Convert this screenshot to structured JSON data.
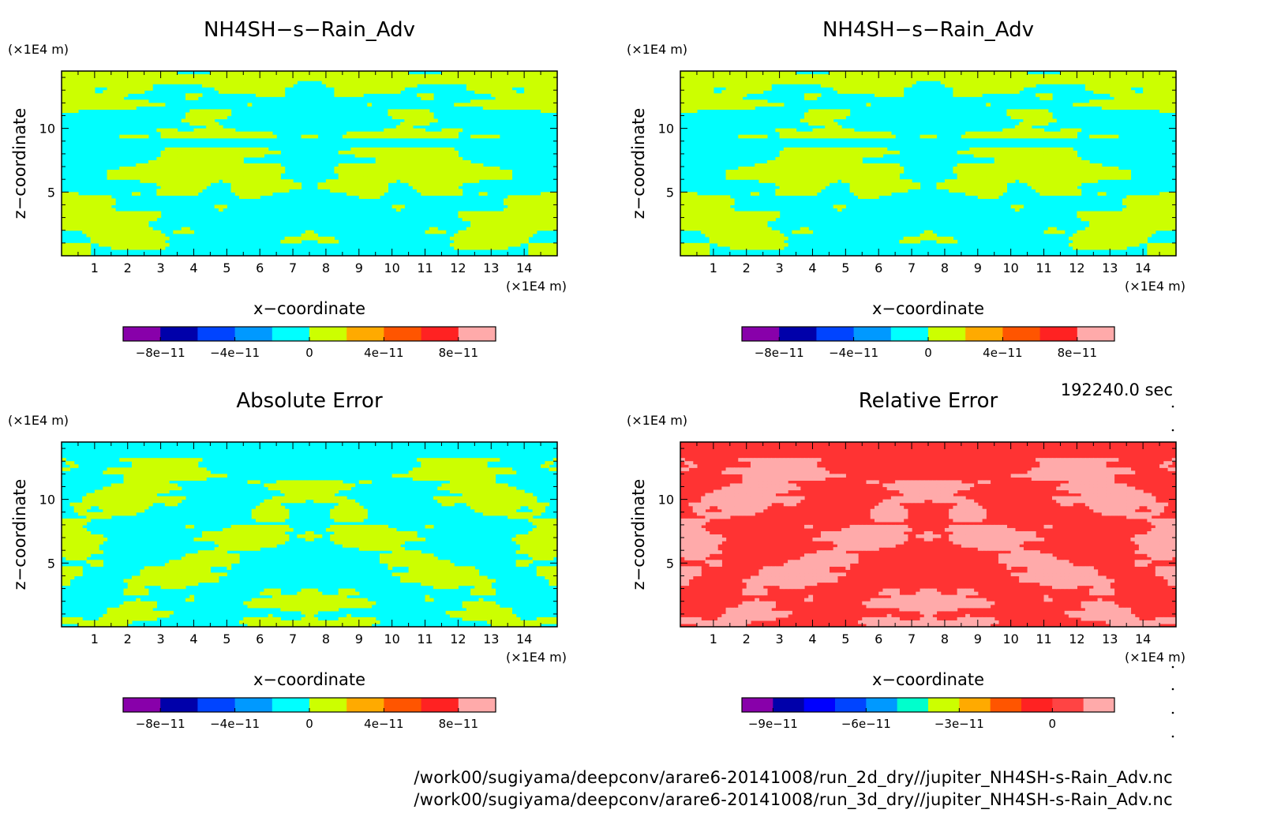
{
  "timestamp": "192240.0 sec",
  "footer_files": [
    "/work00/sugiyama/deepconv/arare6-20141008/run_2d_dry//jupiter_NH4SH-s-Rain_Adv.nc",
    "/work00/sugiyama/deepconv/arare6-20141008/run_3d_dry//jupiter_NH4SH-s-Rain_Adv.nc"
  ],
  "colors": {
    "cyan": "#00ffff",
    "yellow_green": "#ccff00",
    "red": "#ff3333",
    "pink": "#ffaaaa",
    "frame": "#000000"
  },
  "chart_data": [
    {
      "type": "heatmap",
      "title": "NH4SH−s−Rain_Adv",
      "xlabel": "x−coordinate",
      "ylabel": "z−coordinate",
      "x_unit": "(×1E4 m)",
      "y_unit": "(×1E4 m)",
      "xlim": [
        0,
        15
      ],
      "ylim": [
        0,
        14.5
      ],
      "xticks": [
        1,
        2,
        3,
        4,
        5,
        6,
        7,
        8,
        9,
        10,
        11,
        12,
        13,
        14
      ],
      "yticks": [
        5,
        10
      ],
      "field_pattern": "A",
      "field_colors": [
        "cyan",
        "yellow_green"
      ],
      "colorbar": {
        "colors": [
          "#8800aa",
          "#0000aa",
          "#0044ff",
          "#0099ff",
          "#00ffff",
          "#ccff00",
          "#ffaa00",
          "#ff5500",
          "#ff2222",
          "#ffaaaa"
        ],
        "tick_labels": [
          "−8e−11",
          "−4e−11",
          "0",
          "4e−11",
          "8e−11"
        ],
        "tick_boundaries": [
          1,
          3,
          5,
          7,
          9
        ]
      }
    },
    {
      "type": "heatmap",
      "title": "NH4SH−s−Rain_Adv",
      "xlabel": "x−coordinate",
      "ylabel": "z−coordinate",
      "x_unit": "(×1E4 m)",
      "y_unit": "(×1E4 m)",
      "xlim": [
        0,
        15
      ],
      "ylim": [
        0,
        14.5
      ],
      "xticks": [
        1,
        2,
        3,
        4,
        5,
        6,
        7,
        8,
        9,
        10,
        11,
        12,
        13,
        14
      ],
      "yticks": [
        5,
        10
      ],
      "field_pattern": "A",
      "field_colors": [
        "cyan",
        "yellow_green"
      ],
      "colorbar": {
        "colors": [
          "#8800aa",
          "#0000aa",
          "#0044ff",
          "#0099ff",
          "#00ffff",
          "#ccff00",
          "#ffaa00",
          "#ff5500",
          "#ff2222",
          "#ffaaaa"
        ],
        "tick_labels": [
          "−8e−11",
          "−4e−11",
          "0",
          "4e−11",
          "8e−11"
        ],
        "tick_boundaries": [
          1,
          3,
          5,
          7,
          9
        ]
      }
    },
    {
      "type": "heatmap",
      "title": "Absolute Error",
      "xlabel": "x−coordinate",
      "ylabel": "z−coordinate",
      "x_unit": "(×1E4 m)",
      "y_unit": "(×1E4 m)",
      "xlim": [
        0,
        15
      ],
      "ylim": [
        0,
        14.5
      ],
      "xticks": [
        1,
        2,
        3,
        4,
        5,
        6,
        7,
        8,
        9,
        10,
        11,
        12,
        13,
        14
      ],
      "yticks": [
        5,
        10
      ],
      "field_pattern": "B",
      "field_colors": [
        "cyan",
        "yellow_green"
      ],
      "colorbar": {
        "colors": [
          "#8800aa",
          "#0000aa",
          "#0044ff",
          "#0099ff",
          "#00ffff",
          "#ccff00",
          "#ffaa00",
          "#ff5500",
          "#ff2222",
          "#ffaaaa"
        ],
        "tick_labels": [
          "−8e−11",
          "−4e−11",
          "0",
          "4e−11",
          "8e−11"
        ],
        "tick_boundaries": [
          1,
          3,
          5,
          7,
          9
        ]
      }
    },
    {
      "type": "heatmap",
      "title": "Relative Error",
      "xlabel": "x−coordinate",
      "ylabel": "z−coordinate",
      "x_unit": "(×1E4 m)",
      "y_unit": "(×1E4 m)",
      "xlim": [
        0,
        15
      ],
      "ylim": [
        0,
        14.5
      ],
      "xticks": [
        1,
        2,
        3,
        4,
        5,
        6,
        7,
        8,
        9,
        10,
        11,
        12,
        13,
        14
      ],
      "yticks": [
        5,
        10
      ],
      "field_pattern": "B",
      "field_colors": [
        "red",
        "pink"
      ],
      "colorbar": {
        "colors": [
          "#8800aa",
          "#0000aa",
          "#0000ff",
          "#0044ff",
          "#0099ff",
          "#00ffcc",
          "#ccff00",
          "#ffaa00",
          "#ff5500",
          "#ff2222",
          "#ff4444",
          "#ffaaaa"
        ],
        "tick_labels": [
          "−9e−11",
          "−6e−11",
          "−3e−11",
          "0"
        ],
        "tick_boundaries": [
          1,
          4,
          7,
          10
        ]
      }
    }
  ]
}
